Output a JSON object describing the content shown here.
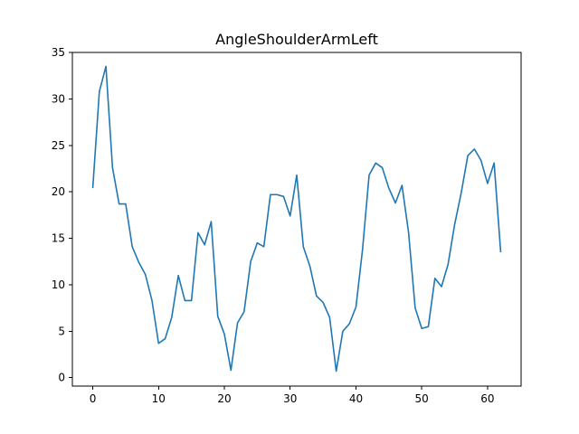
{
  "chart_data": {
    "type": "line",
    "title": "AngleShoulderArmLeft",
    "xlabel": "",
    "ylabel": "",
    "xlim": [
      -3.1,
      65.1
    ],
    "ylim": [
      -0.9,
      35.0
    ],
    "xticks": [
      0,
      10,
      20,
      30,
      40,
      50,
      60
    ],
    "yticks": [
      0,
      5,
      10,
      15,
      20,
      25,
      30,
      35
    ],
    "grid": false,
    "color": "#1f77b4",
    "series": [
      {
        "x": [
          0,
          1,
          2,
          3,
          4,
          5,
          6,
          7,
          8,
          9,
          10,
          11,
          12,
          13,
          14,
          15,
          16,
          17,
          18,
          19,
          20,
          21,
          22,
          23,
          24,
          25,
          26,
          27,
          28,
          29,
          30,
          31,
          32,
          33,
          34,
          35,
          36,
          37,
          38,
          39,
          40,
          41,
          42,
          43,
          44,
          45,
          46,
          47,
          48,
          49,
          50,
          51,
          52,
          53,
          54,
          55,
          56,
          57,
          58,
          59,
          60,
          61,
          62
        ],
        "values": [
          20.4,
          30.8,
          33.5,
          22.6,
          18.7,
          18.7,
          14.1,
          12.4,
          11.1,
          8.3,
          3.7,
          4.2,
          6.5,
          11.0,
          8.3,
          8.3,
          15.6,
          14.3,
          16.8,
          6.6,
          4.7,
          0.8,
          5.9,
          7.1,
          12.5,
          14.5,
          14.1,
          19.7,
          19.7,
          19.5,
          17.4,
          21.8,
          14.1,
          12.0,
          8.8,
          8.1,
          6.5,
          0.7,
          5.0,
          5.8,
          7.6,
          13.8,
          21.8,
          23.1,
          22.6,
          20.4,
          18.8,
          20.7,
          15.6,
          7.5,
          5.3,
          5.5,
          10.7,
          9.8,
          12.2,
          16.5,
          19.9,
          23.9,
          24.6,
          23.4,
          20.9,
          23.1,
          13.5
        ]
      }
    ]
  }
}
